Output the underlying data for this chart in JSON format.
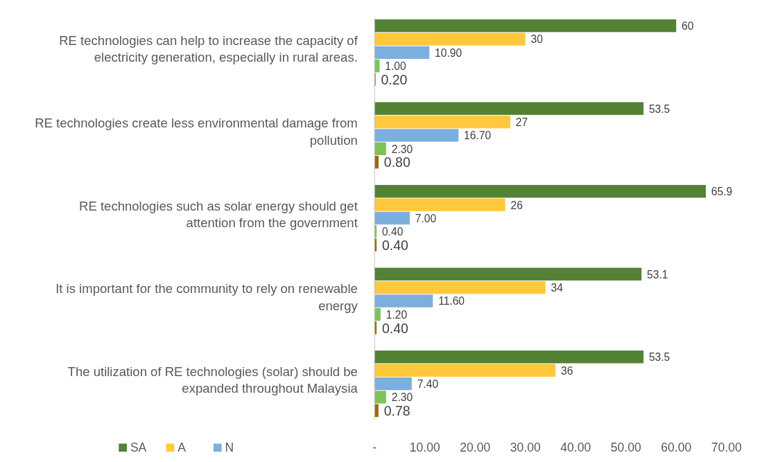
{
  "chart_data": {
    "type": "bar",
    "orientation": "horizontal",
    "categories": [
      "RE technologies can help to increase the capacity of electricity generation, especially in rural areas.",
      "RE technologies create less environmental damage from pollution",
      "RE technologies such as solar energy should get attention from the government",
      "It is important for the community to rely on renewable energy",
      "The utilization of RE technologies (solar) should be expanded throughout Malaysia"
    ],
    "series": [
      {
        "name": "SA",
        "color": "#548235",
        "values": [
          60,
          53.5,
          65.9,
          53.1,
          53.5
        ],
        "value_labels": [
          "60",
          "53.5",
          "65.9",
          "53.1",
          "53.5"
        ]
      },
      {
        "name": "A",
        "color": "#ffc83d",
        "values": [
          30,
          27,
          26,
          34,
          36
        ],
        "value_labels": [
          "30",
          "27",
          "26",
          "34",
          "36"
        ]
      },
      {
        "name": "N",
        "color": "#7cafdd",
        "values": [
          10.9,
          16.7,
          7,
          11.6,
          7.4
        ],
        "value_labels": [
          "10.90",
          "16.70",
          "7.00",
          "11.60",
          "7.40"
        ]
      },
      {
        "color": "#7ec35a",
        "values": [
          1,
          2.3,
          0.4,
          1.2,
          2.3
        ],
        "value_labels": [
          "1.00",
          "2.30",
          "0.40",
          "1.20",
          "2.30"
        ]
      },
      {
        "color": "#9e6a0a",
        "values": [
          0.2,
          0.8,
          0.4,
          0.4,
          0.78
        ],
        "value_labels": [
          "0.20",
          "0.80",
          "0.40",
          "0.40",
          "0.78"
        ]
      }
    ],
    "xlim": [
      0,
      70
    ],
    "xticks": [
      {
        "value": 0,
        "label": "-"
      },
      {
        "value": 10,
        "label": "10.00"
      },
      {
        "value": 20,
        "label": "20.00"
      },
      {
        "value": 30,
        "label": "30.00"
      },
      {
        "value": 40,
        "label": "40.00"
      },
      {
        "value": 50,
        "label": "50.00"
      },
      {
        "value": 60,
        "label": "60.00"
      },
      {
        "value": 70,
        "label": "70.00"
      }
    ],
    "grid": false,
    "legend": "bottom left"
  }
}
